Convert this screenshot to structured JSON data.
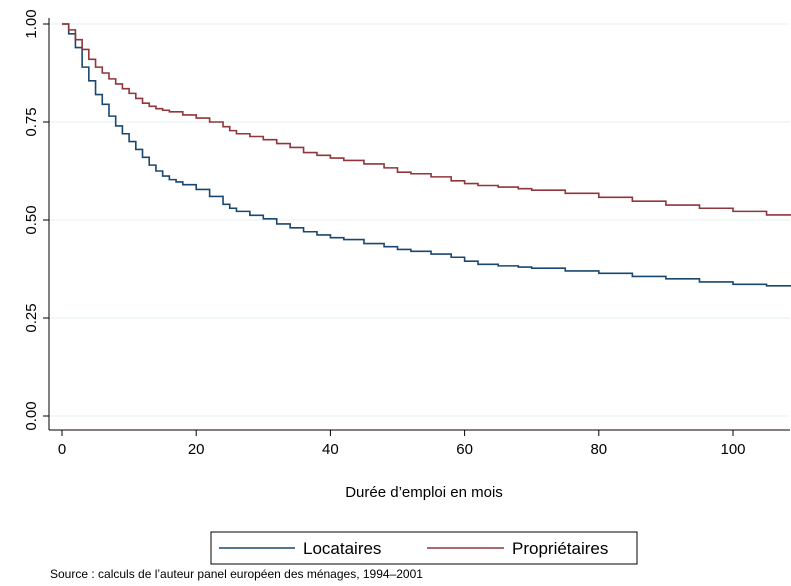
{
  "chart_data": {
    "type": "line",
    "title": "",
    "xlabel": "Durée d’emploi en mois",
    "ylabel": "",
    "xlim": [
      0,
      109
    ],
    "ylim": [
      0,
      1
    ],
    "x_ticks": [
      0,
      20,
      40,
      60,
      80,
      100
    ],
    "x_tick_labels": [
      "0",
      "20",
      "40",
      "60",
      "80",
      "100"
    ],
    "y_ticks": [
      0,
      0.25,
      0.5,
      0.75,
      1.0
    ],
    "y_tick_labels": [
      "0.00",
      "0.25",
      "0.50",
      "0.75",
      "1.00"
    ],
    "grid": "horizontal",
    "legend": "bottom",
    "step": true,
    "source_note": "Source : calculs de l’auteur panel européen des ménages, 1994–2001",
    "series": [
      {
        "name": "Locataires",
        "color": "#1a476f",
        "x": [
          0,
          1,
          2,
          3,
          4,
          5,
          6,
          7,
          8,
          9,
          10,
          11,
          12,
          13,
          14,
          15,
          16,
          17,
          18,
          20,
          22,
          24,
          25,
          26,
          28,
          30,
          32,
          34,
          36,
          38,
          40,
          42,
          45,
          48,
          50,
          52,
          55,
          58,
          60,
          62,
          65,
          68,
          70,
          75,
          80,
          85,
          90,
          95,
          100,
          105,
          109
        ],
        "values": [
          1.0,
          0.975,
          0.94,
          0.89,
          0.855,
          0.82,
          0.795,
          0.765,
          0.74,
          0.72,
          0.7,
          0.68,
          0.66,
          0.64,
          0.625,
          0.612,
          0.603,
          0.597,
          0.59,
          0.578,
          0.56,
          0.54,
          0.53,
          0.522,
          0.512,
          0.503,
          0.49,
          0.48,
          0.47,
          0.462,
          0.455,
          0.45,
          0.44,
          0.432,
          0.425,
          0.42,
          0.413,
          0.405,
          0.395,
          0.387,
          0.383,
          0.38,
          0.377,
          0.37,
          0.364,
          0.356,
          0.35,
          0.342,
          0.336,
          0.332,
          0.328
        ]
      },
      {
        "name": "Propriétaires",
        "color": "#90353b",
        "x": [
          0,
          1,
          2,
          3,
          4,
          5,
          6,
          7,
          8,
          9,
          10,
          11,
          12,
          13,
          14,
          15,
          16,
          18,
          20,
          22,
          24,
          25,
          26,
          28,
          30,
          32,
          34,
          36,
          38,
          40,
          42,
          45,
          48,
          50,
          52,
          55,
          58,
          60,
          62,
          65,
          68,
          70,
          75,
          80,
          85,
          90,
          95,
          100,
          105,
          109
        ],
        "values": [
          1.0,
          0.985,
          0.96,
          0.935,
          0.91,
          0.89,
          0.875,
          0.86,
          0.847,
          0.835,
          0.823,
          0.81,
          0.798,
          0.79,
          0.784,
          0.78,
          0.776,
          0.768,
          0.76,
          0.75,
          0.738,
          0.728,
          0.72,
          0.713,
          0.705,
          0.695,
          0.685,
          0.672,
          0.665,
          0.658,
          0.652,
          0.643,
          0.633,
          0.622,
          0.618,
          0.61,
          0.6,
          0.593,
          0.588,
          0.584,
          0.58,
          0.576,
          0.568,
          0.558,
          0.548,
          0.538,
          0.53,
          0.522,
          0.513,
          0.505
        ]
      }
    ]
  }
}
